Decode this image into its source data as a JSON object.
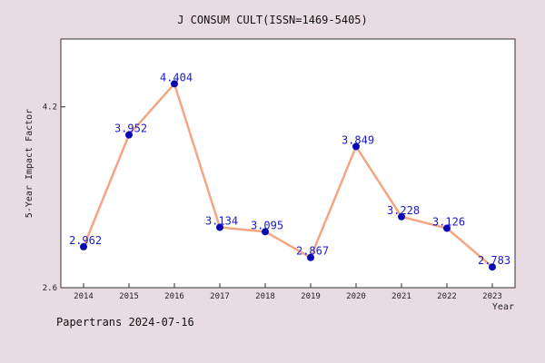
{
  "chart_data": {
    "type": "line",
    "title": "J CONSUM CULT(ISSN=1469-5405)",
    "xlabel": "Year",
    "ylabel": "5-Year Impact Factor",
    "categories": [
      "2014",
      "2015",
      "2016",
      "2017",
      "2018",
      "2019",
      "2020",
      "2021",
      "2022",
      "2023"
    ],
    "series": [
      {
        "values": [
          2.962,
          3.952,
          4.404,
          3.134,
          3.095,
          2.867,
          3.849,
          3.228,
          3.126,
          2.783
        ],
        "labels": [
          "2.962",
          "3.952",
          "4.404",
          "3.134",
          "3.095",
          "2.867",
          "3.849",
          "3.228",
          "3.126",
          "2.783"
        ]
      }
    ],
    "ylim": [
      2.6,
      4.8
    ],
    "yticks": [
      2.6,
      4.2
    ],
    "ytick_labels": [
      "2.6",
      "4.2"
    ],
    "grid": false,
    "line_color": "#f4a582",
    "marker_color": "#0a0ab4",
    "label_color": "#1a1acc"
  },
  "footer": "Papertrans 2024-07-16"
}
